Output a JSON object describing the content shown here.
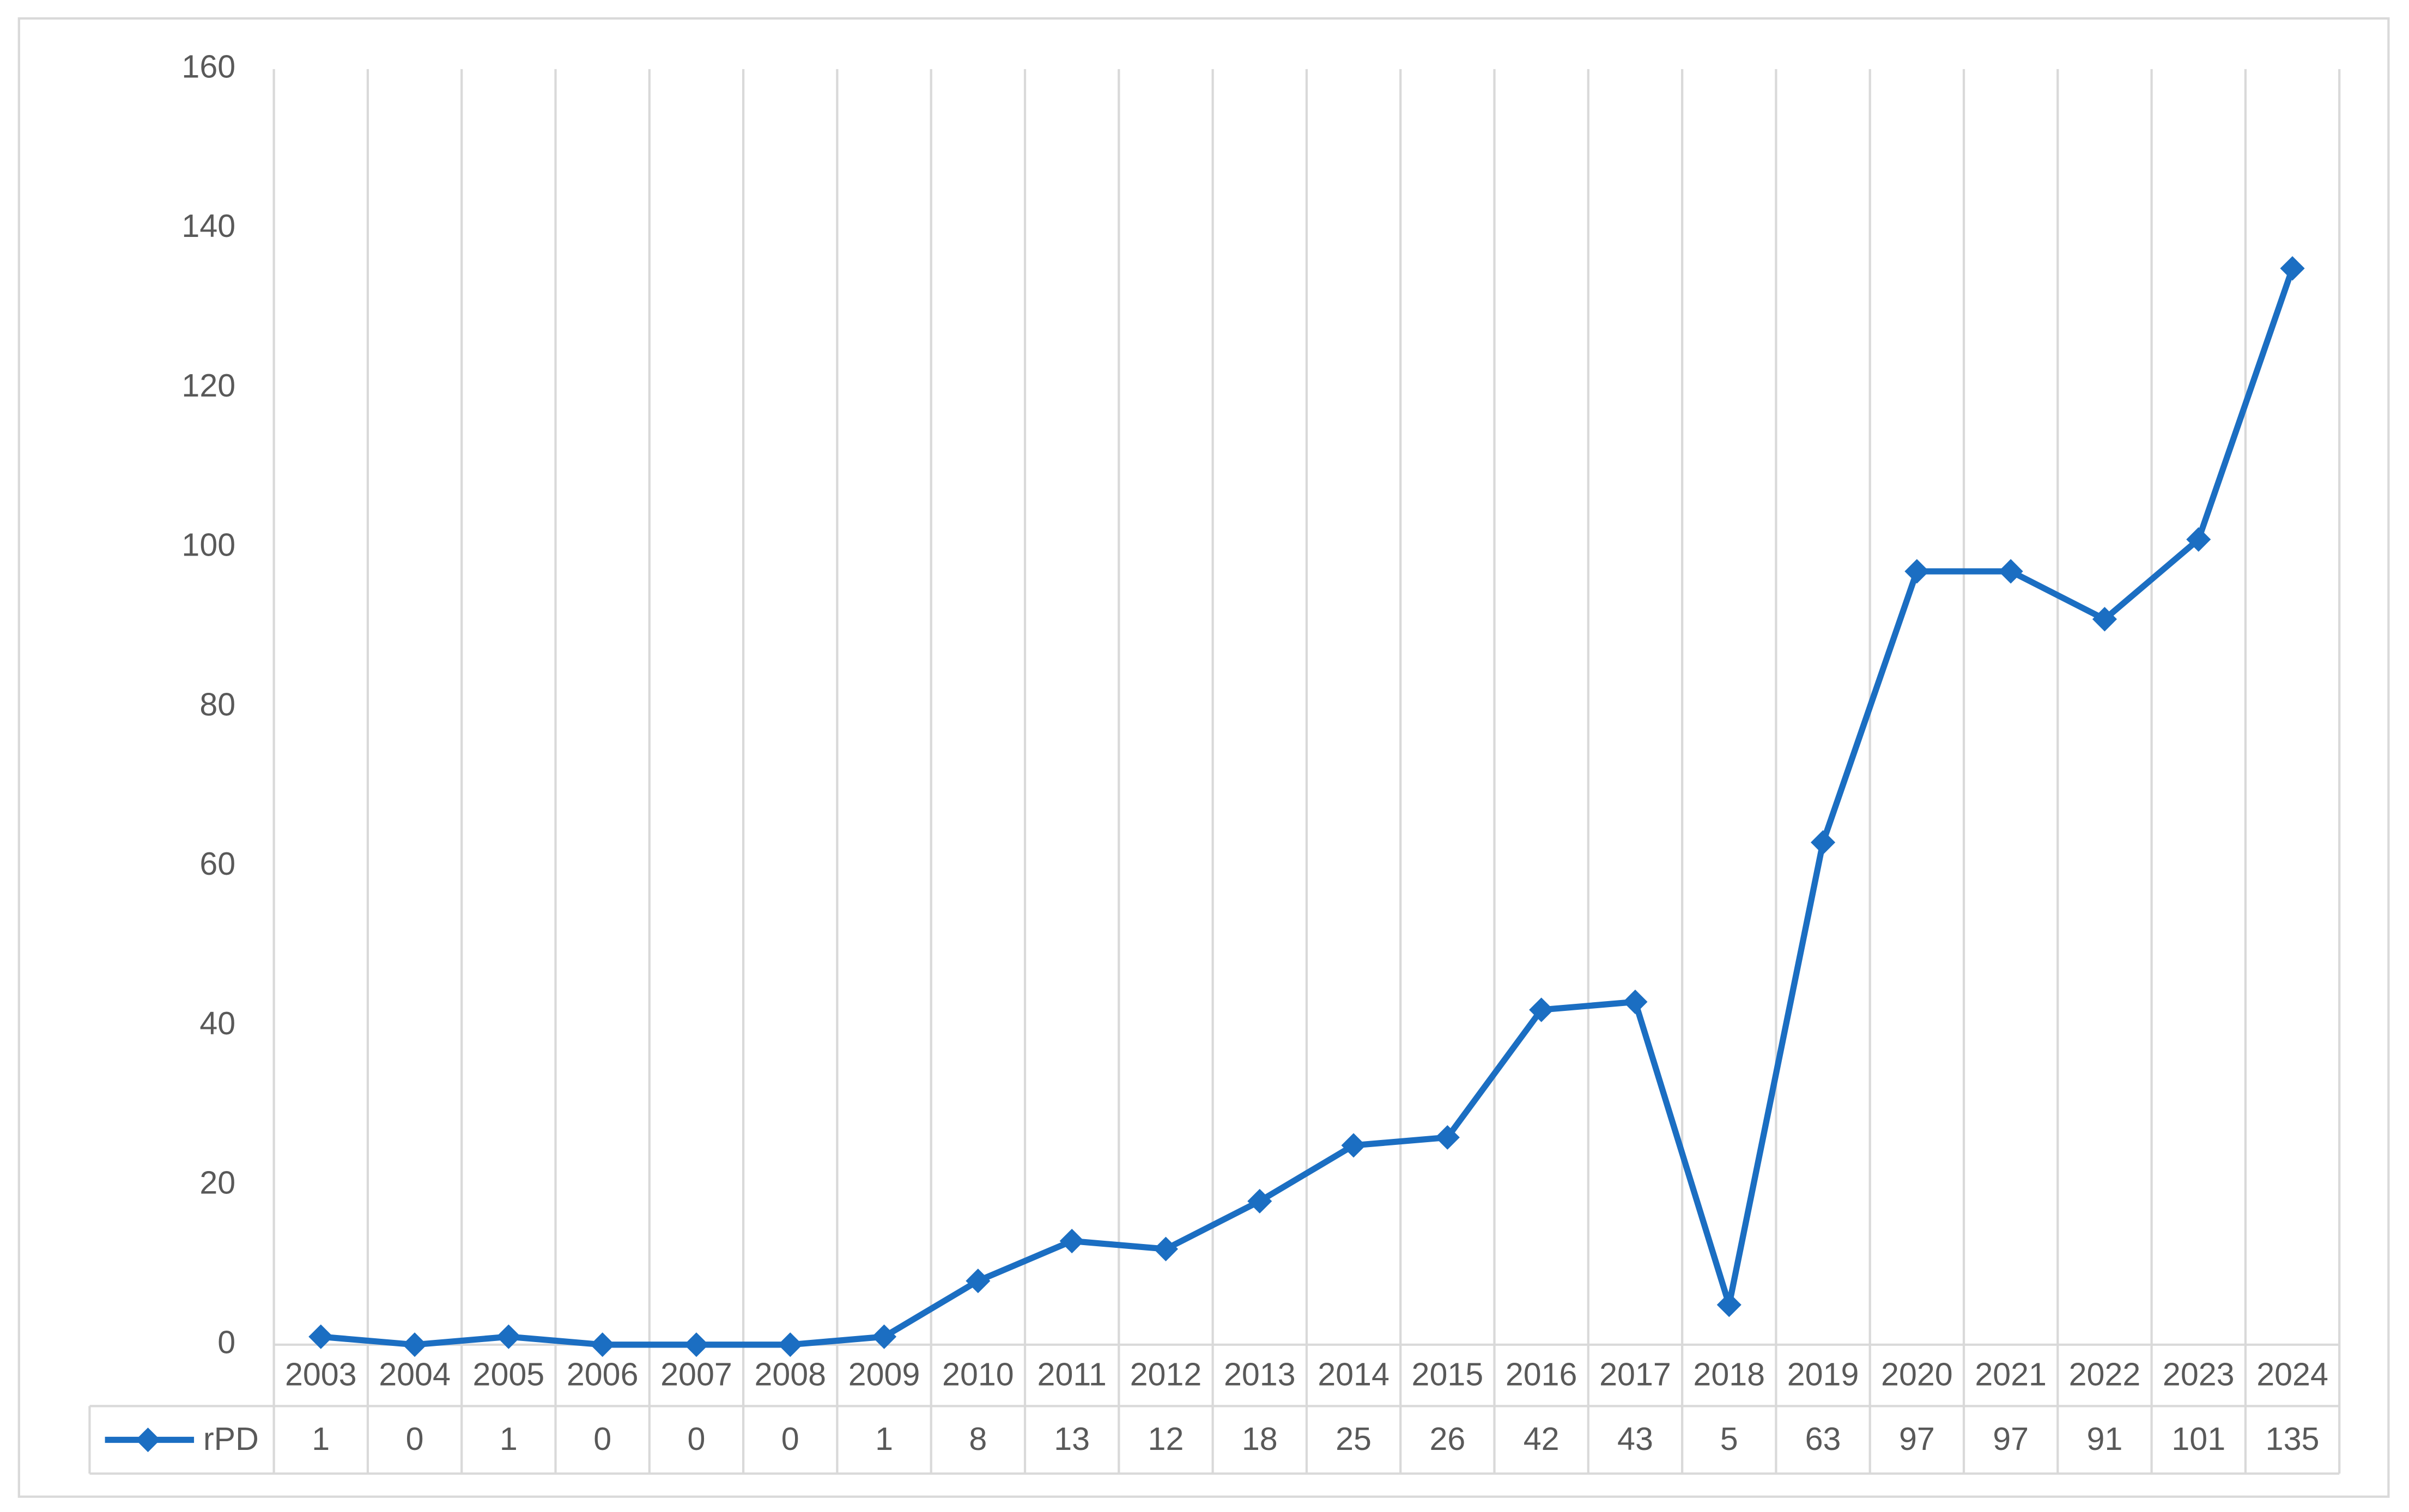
{
  "chart_data": {
    "type": "line",
    "categories": [
      "2003",
      "2004",
      "2005",
      "2006",
      "2007",
      "2008",
      "2009",
      "2010",
      "2011",
      "2012",
      "2013",
      "2014",
      "2015",
      "2016",
      "2017",
      "2018",
      "2019",
      "2020",
      "2021",
      "2022",
      "2023",
      "2024"
    ],
    "series": [
      {
        "name": "rPD",
        "color": "#1b6ec2",
        "values": [
          1,
          0,
          1,
          0,
          0,
          0,
          1,
          8,
          13,
          12,
          18,
          25,
          26,
          42,
          43,
          5,
          63,
          97,
          97,
          91,
          101,
          135
        ]
      }
    ],
    "ylim": [
      0,
      160
    ],
    "yticks": [
      0,
      20,
      40,
      60,
      80,
      100,
      120,
      140,
      160
    ],
    "grid": "x",
    "legend": "data-table"
  }
}
